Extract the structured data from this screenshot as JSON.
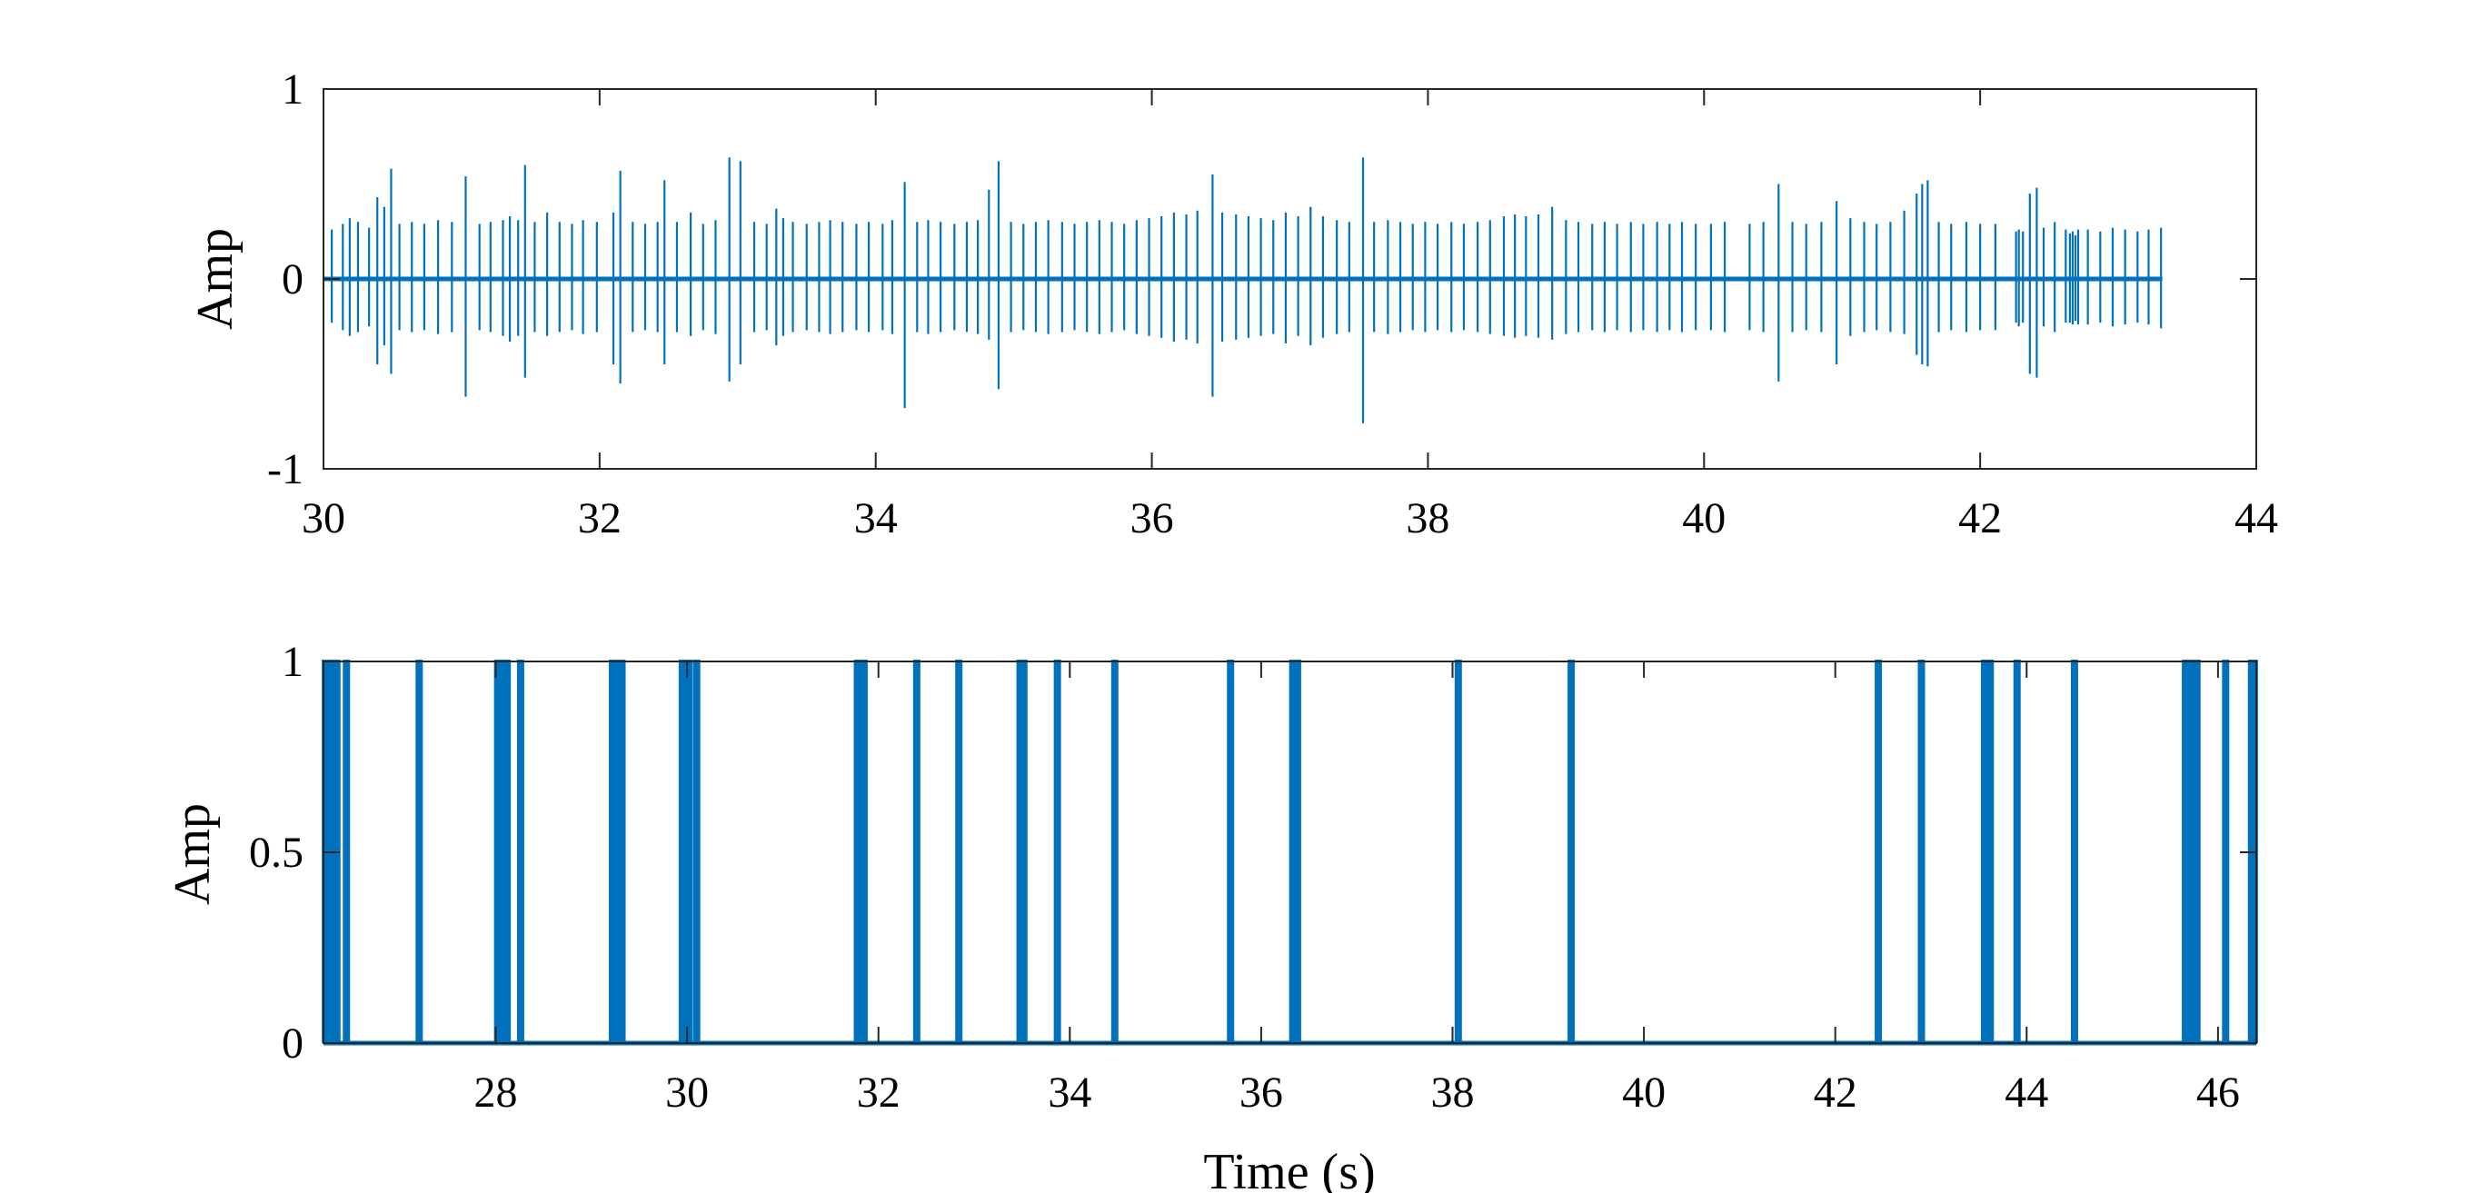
{
  "chart_data": [
    {
      "type": "line",
      "title": "",
      "xlabel": "",
      "ylabel": "Amp",
      "xlim": [
        30,
        44
      ],
      "ylim": [
        -1,
        1
      ],
      "xticks": [
        30,
        32,
        34,
        36,
        38,
        40,
        42,
        44
      ],
      "yticks": [
        -1,
        0,
        1
      ],
      "xtick_labels": [
        "30",
        "32",
        "34",
        "36",
        "38",
        "40",
        "42",
        "44"
      ],
      "ytick_labels": [
        "-1",
        "0",
        "1"
      ],
      "line_color": "#0072BD",
      "signal_end": 43.32,
      "series": [
        {
          "spikes": [
            [
              30.06,
              0.26,
              -0.23
            ],
            [
              30.14,
              0.29,
              -0.27
            ],
            [
              30.19,
              0.32,
              -0.3
            ],
            [
              30.25,
              0.3,
              -0.28
            ],
            [
              30.33,
              0.27,
              -0.25
            ],
            [
              30.39,
              0.43,
              -0.45
            ],
            [
              30.44,
              0.38,
              -0.35
            ],
            [
              30.49,
              0.58,
              -0.5
            ],
            [
              30.55,
              0.29,
              -0.27
            ],
            [
              30.64,
              0.3,
              -0.28
            ],
            [
              30.73,
              0.29,
              -0.27
            ],
            [
              30.83,
              0.31,
              -0.29
            ],
            [
              30.93,
              0.3,
              -0.28
            ],
            [
              31.03,
              0.54,
              -0.62
            ],
            [
              31.13,
              0.29,
              -0.27
            ],
            [
              31.21,
              0.3,
              -0.28
            ],
            [
              31.3,
              0.31,
              -0.3
            ],
            [
              31.35,
              0.33,
              -0.33
            ],
            [
              31.41,
              0.31,
              -0.3
            ],
            [
              31.46,
              0.6,
              -0.52
            ],
            [
              31.53,
              0.3,
              -0.28
            ],
            [
              31.62,
              0.35,
              -0.3
            ],
            [
              31.71,
              0.3,
              -0.28
            ],
            [
              31.8,
              0.29,
              -0.27
            ],
            [
              31.88,
              0.31,
              -0.29
            ],
            [
              31.98,
              0.3,
              -0.28
            ],
            [
              32.1,
              0.35,
              -0.45
            ],
            [
              32.15,
              0.57,
              -0.55
            ],
            [
              32.24,
              0.3,
              -0.28
            ],
            [
              32.33,
              0.29,
              -0.27
            ],
            [
              32.42,
              0.3,
              -0.28
            ],
            [
              32.47,
              0.52,
              -0.45
            ],
            [
              32.56,
              0.3,
              -0.28
            ],
            [
              32.66,
              0.35,
              -0.3
            ],
            [
              32.75,
              0.29,
              -0.27
            ],
            [
              32.84,
              0.31,
              -0.29
            ],
            [
              32.94,
              0.64,
              -0.54
            ],
            [
              33.02,
              0.62,
              -0.45
            ],
            [
              33.12,
              0.3,
              -0.28
            ],
            [
              33.21,
              0.29,
              -0.27
            ],
            [
              33.28,
              0.37,
              -0.35
            ],
            [
              33.33,
              0.32,
              -0.3
            ],
            [
              33.4,
              0.3,
              -0.28
            ],
            [
              33.5,
              0.29,
              -0.27
            ],
            [
              33.59,
              0.3,
              -0.28
            ],
            [
              33.67,
              0.31,
              -0.29
            ],
            [
              33.76,
              0.3,
              -0.28
            ],
            [
              33.86,
              0.29,
              -0.27
            ],
            [
              33.95,
              0.3,
              -0.28
            ],
            [
              34.05,
              0.29,
              -0.27
            ],
            [
              34.12,
              0.31,
              -0.29
            ],
            [
              34.21,
              0.51,
              -0.68
            ],
            [
              34.3,
              0.3,
              -0.28
            ],
            [
              34.38,
              0.31,
              -0.29
            ],
            [
              34.47,
              0.3,
              -0.28
            ],
            [
              34.57,
              0.29,
              -0.27
            ],
            [
              34.66,
              0.3,
              -0.28
            ],
            [
              34.74,
              0.31,
              -0.29
            ],
            [
              34.82,
              0.47,
              -0.32
            ],
            [
              34.89,
              0.62,
              -0.58
            ],
            [
              34.98,
              0.3,
              -0.28
            ],
            [
              35.07,
              0.29,
              -0.27
            ],
            [
              35.16,
              0.3,
              -0.28
            ],
            [
              35.25,
              0.31,
              -0.29
            ],
            [
              35.35,
              0.3,
              -0.28
            ],
            [
              35.44,
              0.29,
              -0.27
            ],
            [
              35.53,
              0.3,
              -0.28
            ],
            [
              35.62,
              0.31,
              -0.29
            ],
            [
              35.71,
              0.3,
              -0.28
            ],
            [
              35.8,
              0.29,
              -0.27
            ],
            [
              35.89,
              0.31,
              -0.29
            ],
            [
              35.98,
              0.32,
              -0.3
            ],
            [
              36.07,
              0.33,
              -0.31
            ],
            [
              36.16,
              0.35,
              -0.33
            ],
            [
              36.25,
              0.34,
              -0.32
            ],
            [
              36.33,
              0.36,
              -0.34
            ],
            [
              36.44,
              0.55,
              -0.62
            ],
            [
              36.51,
              0.35,
              -0.33
            ],
            [
              36.61,
              0.34,
              -0.32
            ],
            [
              36.7,
              0.33,
              -0.31
            ],
            [
              36.79,
              0.32,
              -0.3
            ],
            [
              36.88,
              0.31,
              -0.29
            ],
            [
              36.97,
              0.35,
              -0.34
            ],
            [
              37.06,
              0.33,
              -0.3
            ],
            [
              37.15,
              0.38,
              -0.35
            ],
            [
              37.24,
              0.33,
              -0.31
            ],
            [
              37.34,
              0.31,
              -0.29
            ],
            [
              37.43,
              0.3,
              -0.28
            ],
            [
              37.53,
              0.64,
              -0.76
            ],
            [
              37.61,
              0.3,
              -0.28
            ],
            [
              37.71,
              0.31,
              -0.29
            ],
            [
              37.8,
              0.3,
              -0.28
            ],
            [
              37.89,
              0.29,
              -0.27
            ],
            [
              37.98,
              0.3,
              -0.28
            ],
            [
              38.07,
              0.29,
              -0.27
            ],
            [
              38.17,
              0.3,
              -0.28
            ],
            [
              38.26,
              0.29,
              -0.27
            ],
            [
              38.36,
              0.3,
              -0.28
            ],
            [
              38.45,
              0.31,
              -0.29
            ],
            [
              38.55,
              0.33,
              -0.3
            ],
            [
              38.63,
              0.34,
              -0.31
            ],
            [
              38.71,
              0.33,
              -0.3
            ],
            [
              38.8,
              0.34,
              -0.31
            ],
            [
              38.9,
              0.38,
              -0.32
            ],
            [
              39.0,
              0.31,
              -0.29
            ],
            [
              39.09,
              0.3,
              -0.28
            ],
            [
              39.19,
              0.29,
              -0.27
            ],
            [
              39.28,
              0.3,
              -0.28
            ],
            [
              39.37,
              0.29,
              -0.27
            ],
            [
              39.47,
              0.3,
              -0.28
            ],
            [
              39.56,
              0.29,
              -0.27
            ],
            [
              39.66,
              0.3,
              -0.28
            ],
            [
              39.75,
              0.29,
              -0.27
            ],
            [
              39.84,
              0.3,
              -0.28
            ],
            [
              39.94,
              0.29,
              -0.27
            ],
            [
              40.05,
              0.29,
              -0.27
            ],
            [
              40.15,
              0.3,
              -0.28
            ],
            [
              40.33,
              0.29,
              -0.27
            ],
            [
              40.43,
              0.3,
              -0.28
            ],
            [
              40.54,
              0.5,
              -0.54
            ],
            [
              40.64,
              0.3,
              -0.28
            ],
            [
              40.74,
              0.29,
              -0.27
            ],
            [
              40.85,
              0.3,
              -0.28
            ],
            [
              40.96,
              0.41,
              -0.45
            ],
            [
              41.06,
              0.32,
              -0.3
            ],
            [
              41.16,
              0.3,
              -0.28
            ],
            [
              41.25,
              0.29,
              -0.27
            ],
            [
              41.35,
              0.3,
              -0.28
            ],
            [
              41.45,
              0.36,
              -0.29
            ],
            [
              41.54,
              0.45,
              -0.4
            ],
            [
              41.58,
              0.5,
              -0.45
            ],
            [
              41.62,
              0.52,
              -0.46
            ],
            [
              41.7,
              0.3,
              -0.28
            ],
            [
              41.79,
              0.29,
              -0.27
            ],
            [
              41.9,
              0.3,
              -0.28
            ],
            [
              42.0,
              0.29,
              -0.27
            ],
            [
              42.11,
              0.29,
              -0.27
            ],
            [
              42.26,
              0.25,
              -0.23
            ],
            [
              42.28,
              0.26,
              -0.25
            ],
            [
              42.31,
              0.25,
              -0.23
            ],
            [
              42.36,
              0.45,
              -0.5
            ],
            [
              42.41,
              0.48,
              -0.52
            ],
            [
              42.46,
              0.27,
              -0.25
            ],
            [
              42.54,
              0.3,
              -0.28
            ],
            [
              42.62,
              0.26,
              -0.23
            ],
            [
              42.65,
              0.24,
              -0.23
            ],
            [
              42.67,
              0.25,
              -0.24
            ],
            [
              42.69,
              0.23,
              -0.22
            ],
            [
              42.71,
              0.26,
              -0.24
            ],
            [
              42.78,
              0.26,
              -0.24
            ],
            [
              42.87,
              0.25,
              -0.23
            ],
            [
              42.96,
              0.27,
              -0.25
            ],
            [
              43.05,
              0.26,
              -0.24
            ],
            [
              43.14,
              0.25,
              -0.23
            ],
            [
              43.22,
              0.26,
              -0.24
            ],
            [
              43.31,
              0.27,
              -0.26
            ]
          ]
        }
      ]
    },
    {
      "type": "line",
      "title": "",
      "xlabel": "Time (s)",
      "ylabel": "Amp",
      "xlim": [
        26.2,
        46.4
      ],
      "ylim": [
        0,
        1
      ],
      "xticks": [
        28,
        30,
        32,
        34,
        36,
        38,
        40,
        42,
        44,
        46
      ],
      "yticks": [
        0,
        0.5,
        1
      ],
      "xtick_labels": [
        "28",
        "30",
        "32",
        "34",
        "36",
        "38",
        "40",
        "42",
        "44",
        "46"
      ],
      "ytick_labels": [
        "0",
        "0.5",
        "1"
      ],
      "line_color": "#0072BD",
      "series": [
        {
          "pulses": [
            26.22,
            26.28,
            26.34,
            26.44,
            27.2,
            28.02,
            28.06,
            28.12,
            28.26,
            29.22,
            29.27,
            29.32,
            29.95,
            30.02,
            30.1,
            31.78,
            31.85,
            32.4,
            32.84,
            33.48,
            33.52,
            33.87,
            34.47,
            35.68,
            36.33,
            36.38,
            38.06,
            39.24,
            42.45,
            42.9,
            43.56,
            43.62,
            43.9,
            44.5,
            45.66,
            45.7,
            45.74,
            45.78,
            46.08,
            46.35,
            46.38
          ]
        }
      ]
    }
  ]
}
